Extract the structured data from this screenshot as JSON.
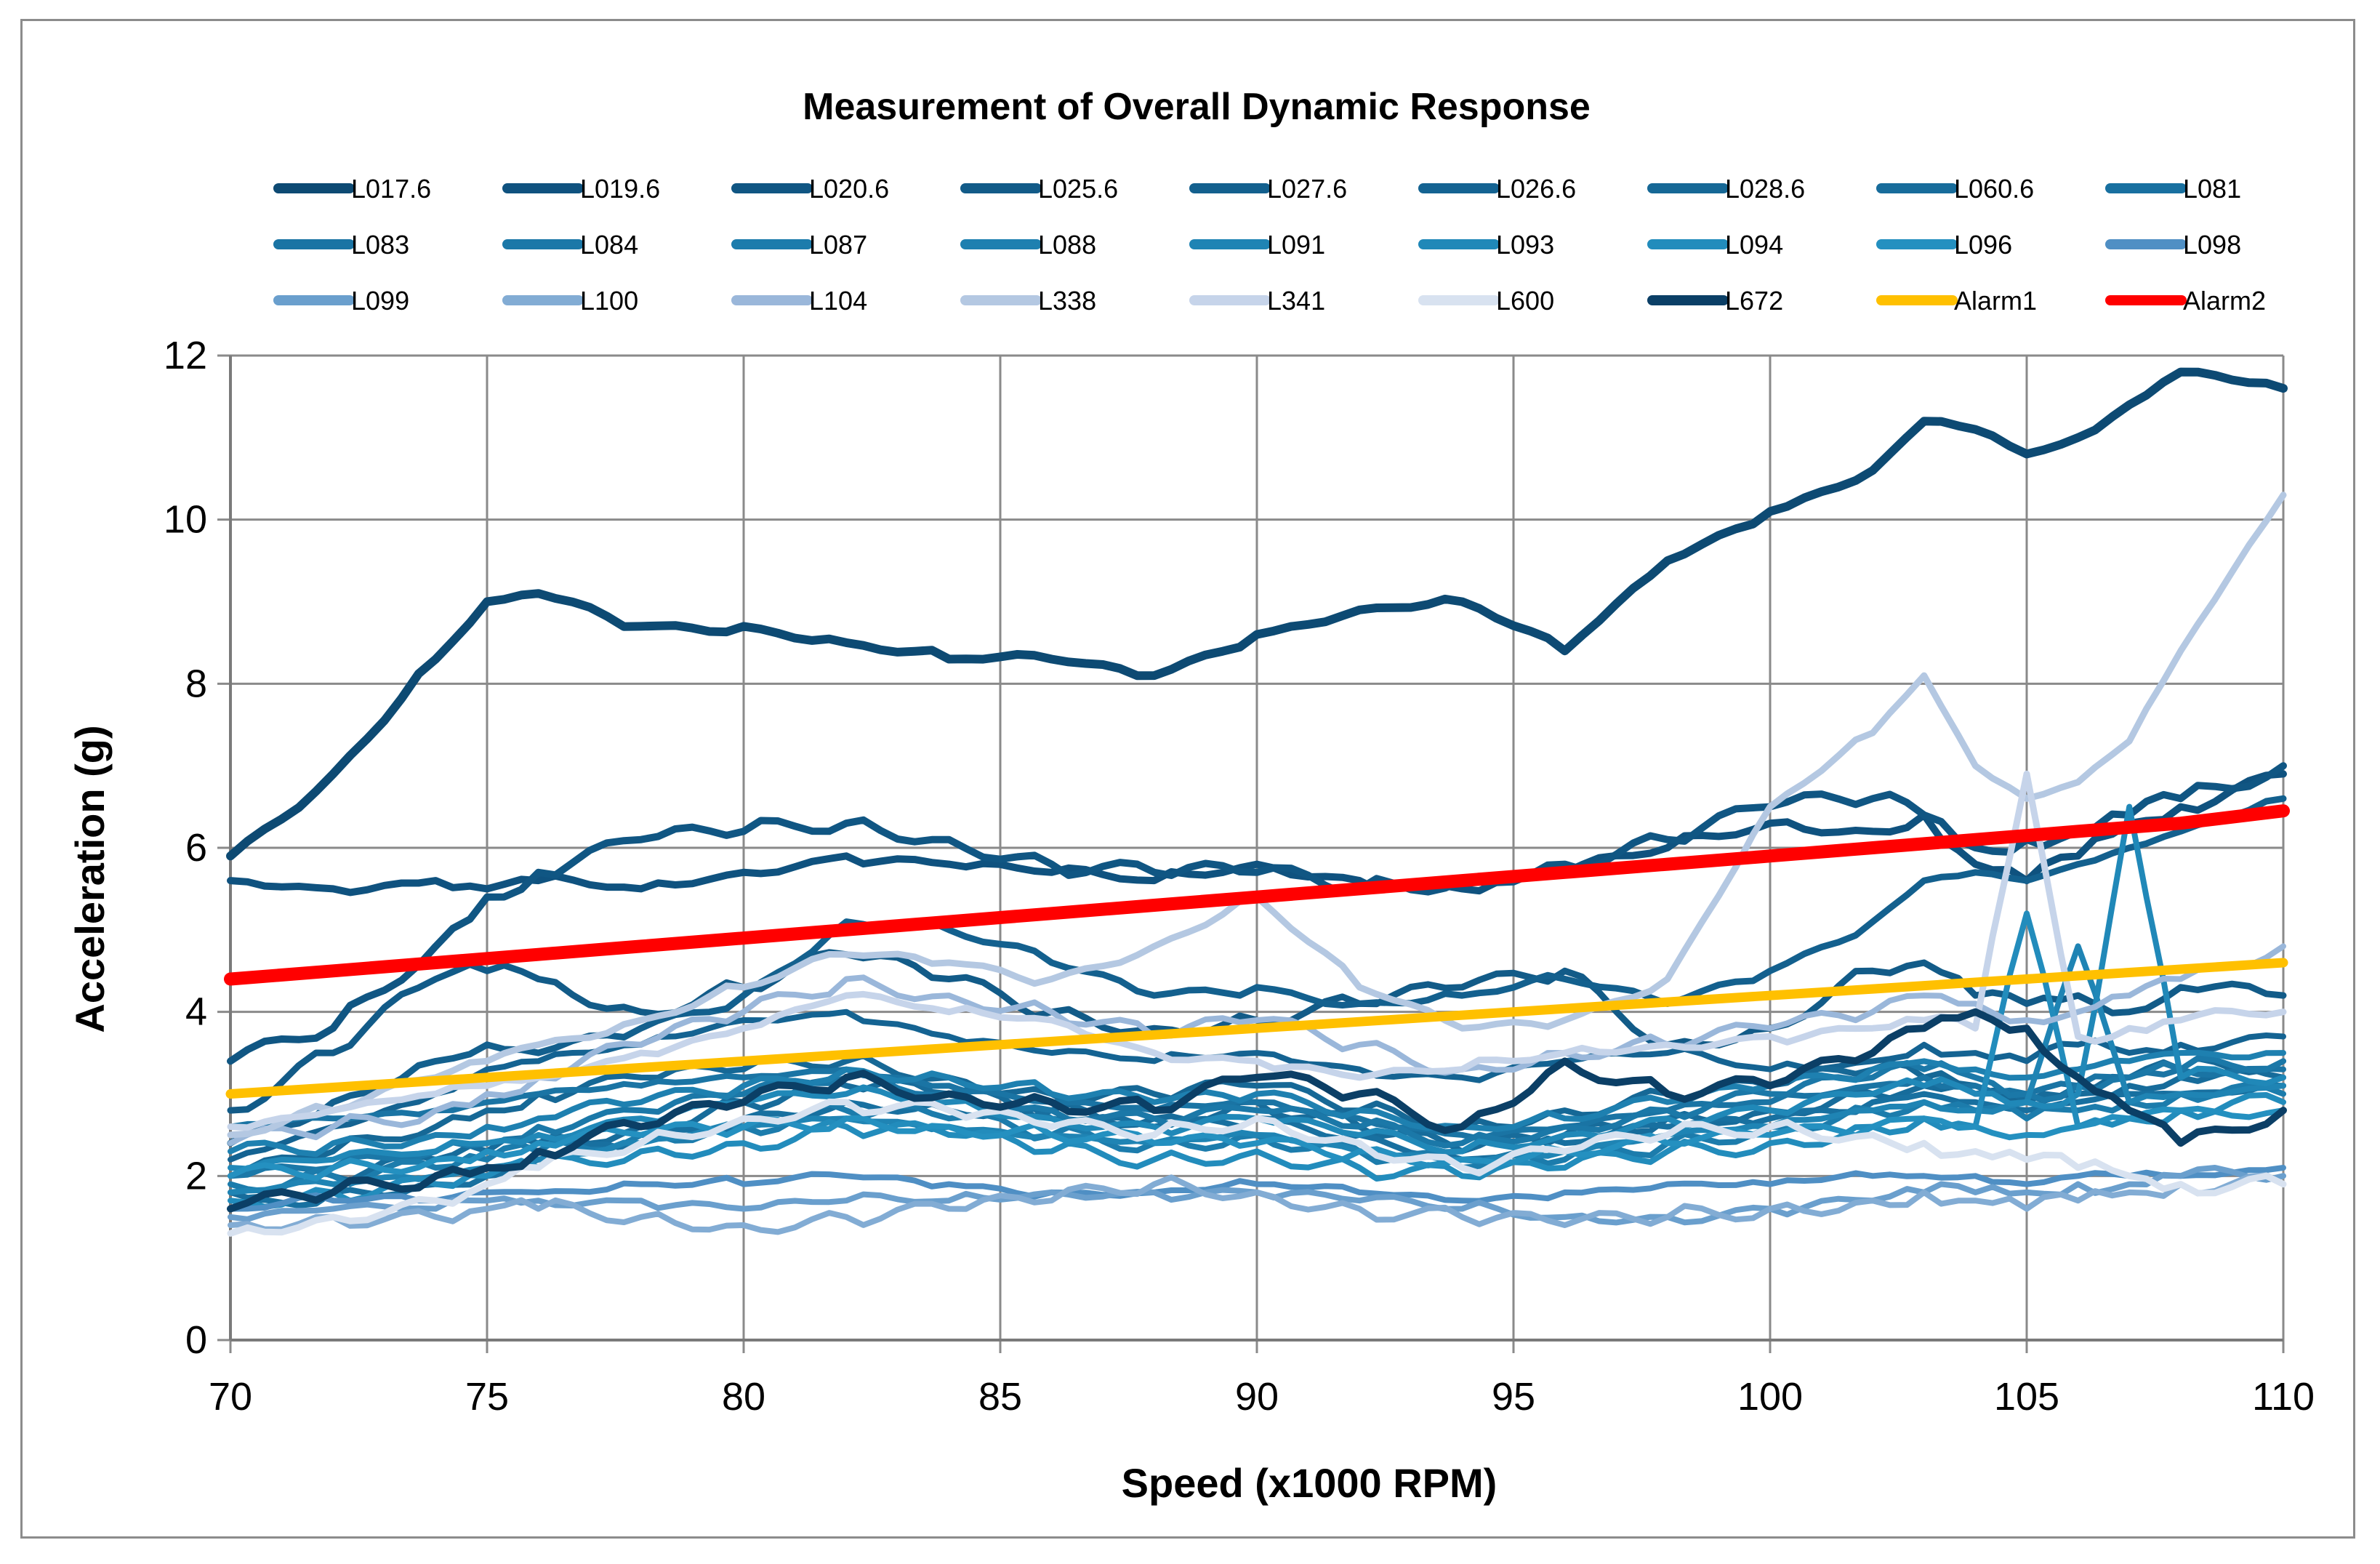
{
  "chart_data": {
    "type": "line",
    "title": "Measurement of Overall Dynamic Response",
    "xlabel": "Speed (x1000 RPM)",
    "ylabel": "Acceleration (g)",
    "xlim": [
      70,
      110
    ],
    "ylim": [
      0,
      12
    ],
    "x_ticks": [
      "70",
      "75",
      "80",
      "85",
      "90",
      "95",
      "100",
      "105",
      "110"
    ],
    "y_ticks": [
      "0",
      "2",
      "4",
      "6",
      "8",
      "10",
      "12"
    ],
    "grid": true,
    "legend_position": "top",
    "x": [
      70,
      72,
      74,
      75,
      76,
      78,
      80,
      82,
      84,
      86,
      88,
      90,
      92,
      94,
      96,
      98,
      100,
      102,
      103,
      104,
      105,
      106,
      107,
      108,
      110
    ],
    "series": [
      {
        "name": "L017.6",
        "color": "#0d4a73",
        "values": [
          5.9,
          6.9,
          8.3,
          9.0,
          9.1,
          8.7,
          8.7,
          8.5,
          8.3,
          8.3,
          8.1,
          8.6,
          8.9,
          9.0,
          8.4,
          9.5,
          10.1,
          10.6,
          11.2,
          11.1,
          10.8,
          11.0,
          11.4,
          11.8,
          11.6
        ],
        "width": 12
      },
      {
        "name": "L019.6",
        "color": "#0f527f",
        "values": [
          5.6,
          5.5,
          5.6,
          5.5,
          5.6,
          5.5,
          5.7,
          5.9,
          5.8,
          5.7,
          5.6,
          5.8,
          5.6,
          5.5,
          5.7,
          6.0,
          6.3,
          6.2,
          6.4,
          5.8,
          5.6,
          5.9,
          6.3,
          6.5,
          6.9
        ],
        "width": 10
      },
      {
        "name": "L020.6",
        "color": "#105683",
        "values": [
          3.4,
          3.8,
          4.8,
          5.4,
          5.7,
          6.1,
          6.2,
          6.3,
          6.1,
          5.8,
          5.7,
          5.7,
          5.5,
          5.6,
          5.8,
          6.1,
          6.5,
          6.6,
          6.4,
          6.0,
          6.1,
          6.2,
          6.4,
          6.6,
          7.0
        ],
        "width": 10
      },
      {
        "name": "L025.6",
        "color": "#125b88",
        "values": [
          2.8,
          3.5,
          4.4,
          4.5,
          4.4,
          4.0,
          4.3,
          4.7,
          4.4,
          4.0,
          3.8,
          3.9,
          4.1,
          4.3,
          4.5,
          3.6,
          3.8,
          4.5,
          4.6,
          4.2,
          4.1,
          4.2,
          4.0,
          4.3,
          4.2
        ],
        "width": 9
      },
      {
        "name": "L027.6",
        "color": "#13608e",
        "values": [
          2.4,
          2.9,
          3.4,
          3.6,
          3.5,
          3.8,
          4.2,
          5.1,
          5.0,
          4.6,
          4.2,
          4.3,
          4.1,
          4.2,
          4.4,
          4.1,
          4.5,
          5.1,
          5.6,
          5.7,
          5.6,
          5.8,
          6.0,
          6.2,
          6.6
        ],
        "width": 9
      },
      {
        "name": "L026.6",
        "color": "#146392",
        "values": [
          2.2,
          2.6,
          3.0,
          3.3,
          3.4,
          3.6,
          3.9,
          4.0,
          3.7,
          3.5,
          3.4,
          3.5,
          3.3,
          3.2,
          3.4,
          3.5,
          3.3,
          3.4,
          3.6,
          3.5,
          3.4,
          3.6,
          3.5,
          3.6,
          3.7
        ],
        "width": 8
      },
      {
        "name": "L028.6",
        "color": "#166896",
        "values": [
          2.0,
          2.3,
          2.6,
          2.8,
          3.0,
          3.2,
          3.3,
          3.4,
          3.2,
          3.0,
          3.0,
          3.1,
          2.8,
          2.6,
          2.8,
          3.0,
          3.1,
          3.3,
          3.2,
          3.1,
          3.0,
          3.1,
          3.2,
          3.3,
          3.4
        ],
        "width": 8
      },
      {
        "name": "L060.6",
        "color": "#176c9b",
        "values": [
          1.8,
          2.0,
          2.2,
          2.3,
          2.4,
          2.6,
          2.9,
          3.1,
          3.0,
          2.8,
          2.7,
          2.9,
          2.6,
          2.3,
          2.5,
          2.7,
          2.8,
          3.0,
          3.1,
          3.0,
          2.9,
          3.0,
          3.1,
          3.2,
          3.2
        ],
        "width": 8
      },
      {
        "name": "L081",
        "color": "#1870a0",
        "values": [
          1.6,
          1.8,
          1.9,
          2.0,
          2.2,
          2.4,
          2.7,
          2.9,
          2.8,
          2.7,
          2.6,
          2.7,
          2.5,
          2.2,
          2.4,
          2.6,
          2.7,
          2.9,
          3.0,
          2.9,
          2.8,
          2.9,
          3.0,
          3.0,
          3.1
        ],
        "width": 8
      },
      {
        "name": "L083",
        "color": "#1a74a4",
        "values": [
          2.6,
          2.7,
          2.8,
          2.9,
          3.0,
          3.1,
          3.2,
          3.3,
          3.1,
          2.9,
          2.8,
          2.9,
          2.7,
          2.5,
          2.6,
          2.8,
          2.9,
          3.1,
          3.2,
          3.1,
          3.0,
          3.1,
          3.2,
          3.3,
          3.3
        ],
        "width": 8
      },
      {
        "name": "L084",
        "color": "#1b78a8",
        "values": [
          2.0,
          2.1,
          2.3,
          2.4,
          2.6,
          2.8,
          3.0,
          3.2,
          3.0,
          2.8,
          2.7,
          2.8,
          2.6,
          2.4,
          2.6,
          2.8,
          3.0,
          3.2,
          3.3,
          3.2,
          3.0,
          3.1,
          3.2,
          3.3,
          3.4
        ],
        "width": 8
      },
      {
        "name": "L087",
        "color": "#1c7cac",
        "values": [
          1.9,
          2.0,
          2.1,
          2.2,
          2.3,
          2.5,
          2.6,
          2.8,
          2.7,
          2.5,
          2.4,
          2.5,
          2.3,
          2.1,
          2.2,
          2.4,
          2.6,
          2.8,
          2.9,
          2.8,
          2.7,
          2.8,
          2.9,
          3.0,
          3.0
        ],
        "width": 8
      },
      {
        "name": "L088",
        "color": "#1e80b0",
        "values": [
          2.3,
          2.4,
          2.5,
          2.6,
          2.7,
          2.9,
          3.1,
          3.3,
          3.2,
          3.0,
          2.9,
          3.0,
          2.8,
          2.6,
          2.7,
          2.9,
          3.1,
          3.3,
          3.4,
          3.3,
          3.2,
          3.3,
          3.4,
          3.5,
          3.5
        ],
        "width": 8
      },
      {
        "name": "L091",
        "color": "#1f84b4",
        "values": [
          1.8,
          1.9,
          2.0,
          2.1,
          2.2,
          2.4,
          2.6,
          2.7,
          2.6,
          2.5,
          2.4,
          2.5,
          2.3,
          2.2,
          2.3,
          2.5,
          2.6,
          2.8,
          2.9,
          2.8,
          2.9,
          4.8,
          2.9,
          3.0,
          3.1
        ],
        "width": 8
      },
      {
        "name": "L093",
        "color": "#2088b8",
        "values": [
          2.1,
          2.2,
          2.3,
          2.4,
          2.5,
          2.7,
          2.9,
          3.0,
          2.9,
          2.7,
          2.6,
          2.7,
          2.5,
          2.3,
          2.5,
          2.7,
          2.8,
          3.0,
          3.1,
          3.0,
          2.9,
          3.0,
          6.5,
          3.2,
          3.2
        ],
        "width": 8
      },
      {
        "name": "L094",
        "color": "#228cbc",
        "values": [
          1.7,
          1.8,
          1.9,
          2.0,
          2.1,
          2.3,
          2.4,
          2.6,
          2.5,
          2.3,
          2.2,
          2.3,
          2.1,
          2.0,
          2.1,
          2.3,
          2.4,
          2.6,
          2.7,
          2.6,
          5.2,
          2.6,
          2.7,
          2.8,
          2.9
        ],
        "width": 8
      },
      {
        "name": "L096",
        "color": "#2490c0",
        "values": [
          2.0,
          2.1,
          2.2,
          2.3,
          2.4,
          2.5,
          2.6,
          2.7,
          2.6,
          2.5,
          2.4,
          2.4,
          2.3,
          2.2,
          2.3,
          2.4,
          2.5,
          2.6,
          2.7,
          2.6,
          2.5,
          2.6,
          2.7,
          2.8,
          2.8
        ],
        "width": 8
      },
      {
        "name": "L098",
        "color": "#4f8fc4",
        "values": [
          1.6,
          1.7,
          1.7,
          1.8,
          1.8,
          1.9,
          1.9,
          2.0,
          1.9,
          1.8,
          1.8,
          1.9,
          1.8,
          1.7,
          1.8,
          1.9,
          1.9,
          2.0,
          2.0,
          2.0,
          1.9,
          2.0,
          2.0,
          2.0,
          2.1
        ],
        "width": 8
      },
      {
        "name": "L099",
        "color": "#6a9fcd",
        "values": [
          1.5,
          1.6,
          1.6,
          1.7,
          1.7,
          1.7,
          1.6,
          1.7,
          1.7,
          1.8,
          1.8,
          1.8,
          1.7,
          1.6,
          1.5,
          1.5,
          1.6,
          1.7,
          1.8,
          1.8,
          1.8,
          1.9,
          1.9,
          2.0,
          2.0
        ],
        "width": 8
      },
      {
        "name": "L100",
        "color": "#82acd4",
        "values": [
          1.4,
          1.5,
          1.5,
          1.6,
          1.6,
          1.5,
          1.4,
          1.5,
          1.6,
          1.7,
          1.9,
          1.8,
          1.6,
          1.5,
          1.4,
          1.5,
          1.6,
          1.7,
          1.8,
          1.7,
          1.6,
          1.7,
          1.8,
          1.9,
          1.9
        ],
        "width": 8
      },
      {
        "name": "L104",
        "color": "#9ab7da",
        "values": [
          2.4,
          2.6,
          2.8,
          3.0,
          3.2,
          3.6,
          4.0,
          4.4,
          4.2,
          4.0,
          3.7,
          3.9,
          3.6,
          3.3,
          3.5,
          3.6,
          3.8,
          4.0,
          4.2,
          4.1,
          3.9,
          4.0,
          4.2,
          4.4,
          4.8
        ],
        "width": 8
      },
      {
        "name": "L338",
        "color": "#b4c8e2",
        "values": [
          2.5,
          2.8,
          3.2,
          3.4,
          3.6,
          3.9,
          4.3,
          4.7,
          4.6,
          4.4,
          4.8,
          5.4,
          4.3,
          3.8,
          3.9,
          4.4,
          6.5,
          7.4,
          8.1,
          7.0,
          6.6,
          6.8,
          7.3,
          8.4,
          10.3
        ],
        "width": 9
      },
      {
        "name": "L341",
        "color": "#c6d4ea",
        "values": [
          2.6,
          2.8,
          3.0,
          3.1,
          3.2,
          3.5,
          3.8,
          4.2,
          4.0,
          3.9,
          3.5,
          3.4,
          3.2,
          3.3,
          3.5,
          3.6,
          3.7,
          3.8,
          3.9,
          3.8,
          6.9,
          3.7,
          3.8,
          3.9,
          4.0
        ],
        "width": 9
      },
      {
        "name": "L600",
        "color": "#d8e2f0",
        "values": [
          1.3,
          1.5,
          1.7,
          1.9,
          2.1,
          2.4,
          2.7,
          2.9,
          2.8,
          2.6,
          2.5,
          2.7,
          2.4,
          2.1,
          2.3,
          2.5,
          2.6,
          2.5,
          2.4,
          2.3,
          2.2,
          2.1,
          2.0,
          1.9,
          1.9
        ],
        "width": 9
      },
      {
        "name": "L672",
        "color": "#0b3f66",
        "values": [
          1.6,
          1.8,
          2.0,
          2.1,
          2.3,
          2.6,
          2.9,
          3.2,
          3.0,
          2.9,
          2.8,
          3.2,
          3.0,
          2.6,
          3.4,
          3.0,
          3.1,
          3.5,
          3.8,
          4.0,
          3.8,
          3.2,
          2.8,
          2.4,
          2.8
        ],
        "width": 10
      },
      {
        "name": "Alarm1",
        "color": "#ffc000",
        "values": [
          3.0,
          3.08,
          3.16,
          3.2,
          3.24,
          3.32,
          3.4,
          3.48,
          3.56,
          3.64,
          3.72,
          3.8,
          3.88,
          3.96,
          4.04,
          4.12,
          4.2,
          4.28,
          4.32,
          4.36,
          4.4,
          4.44,
          4.48,
          4.52,
          4.6
        ],
        "width": 13
      },
      {
        "name": "Alarm2",
        "color": "#ff0000",
        "values": [
          4.4,
          4.5,
          4.6,
          4.65,
          4.7,
          4.8,
          4.9,
          5.0,
          5.1,
          5.2,
          5.3,
          5.4,
          5.5,
          5.6,
          5.7,
          5.8,
          5.9,
          6.0,
          6.05,
          6.1,
          6.15,
          6.2,
          6.25,
          6.3,
          6.45
        ],
        "width": 18
      }
    ]
  }
}
